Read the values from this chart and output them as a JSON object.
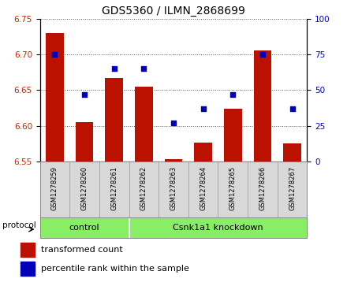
{
  "title": "GDS5360 / ILMN_2868699",
  "samples": [
    "GSM1278259",
    "GSM1278260",
    "GSM1278261",
    "GSM1278262",
    "GSM1278263",
    "GSM1278264",
    "GSM1278265",
    "GSM1278266",
    "GSM1278267"
  ],
  "transformed_count": [
    6.73,
    6.605,
    6.667,
    6.655,
    6.553,
    6.577,
    6.624,
    6.706,
    6.575
  ],
  "percentile_rank": [
    75,
    47,
    65,
    65,
    27,
    37,
    47,
    75,
    37
  ],
  "ylim_left": [
    6.55,
    6.75
  ],
  "ylim_right": [
    0,
    100
  ],
  "yticks_left": [
    6.55,
    6.6,
    6.65,
    6.7,
    6.75
  ],
  "yticks_right": [
    0,
    25,
    50,
    75,
    100
  ],
  "bar_color": "#bb1100",
  "dot_color": "#0000bb",
  "group_labels": [
    "control",
    "Csnk1a1 knockdown"
  ],
  "group_splits": [
    3
  ],
  "group_color": "#88ee66",
  "protocol_label": "protocol",
  "legend_bar_label": "transformed count",
  "legend_dot_label": "percentile rank within the sample",
  "bar_width": 0.6,
  "label_bg_color": "#d8d8d8",
  "tick_label_color_left": "#cc2200",
  "tick_label_color_right": "#0000cc",
  "grid_color": "#555555",
  "n_groups": 9,
  "control_count": 3
}
